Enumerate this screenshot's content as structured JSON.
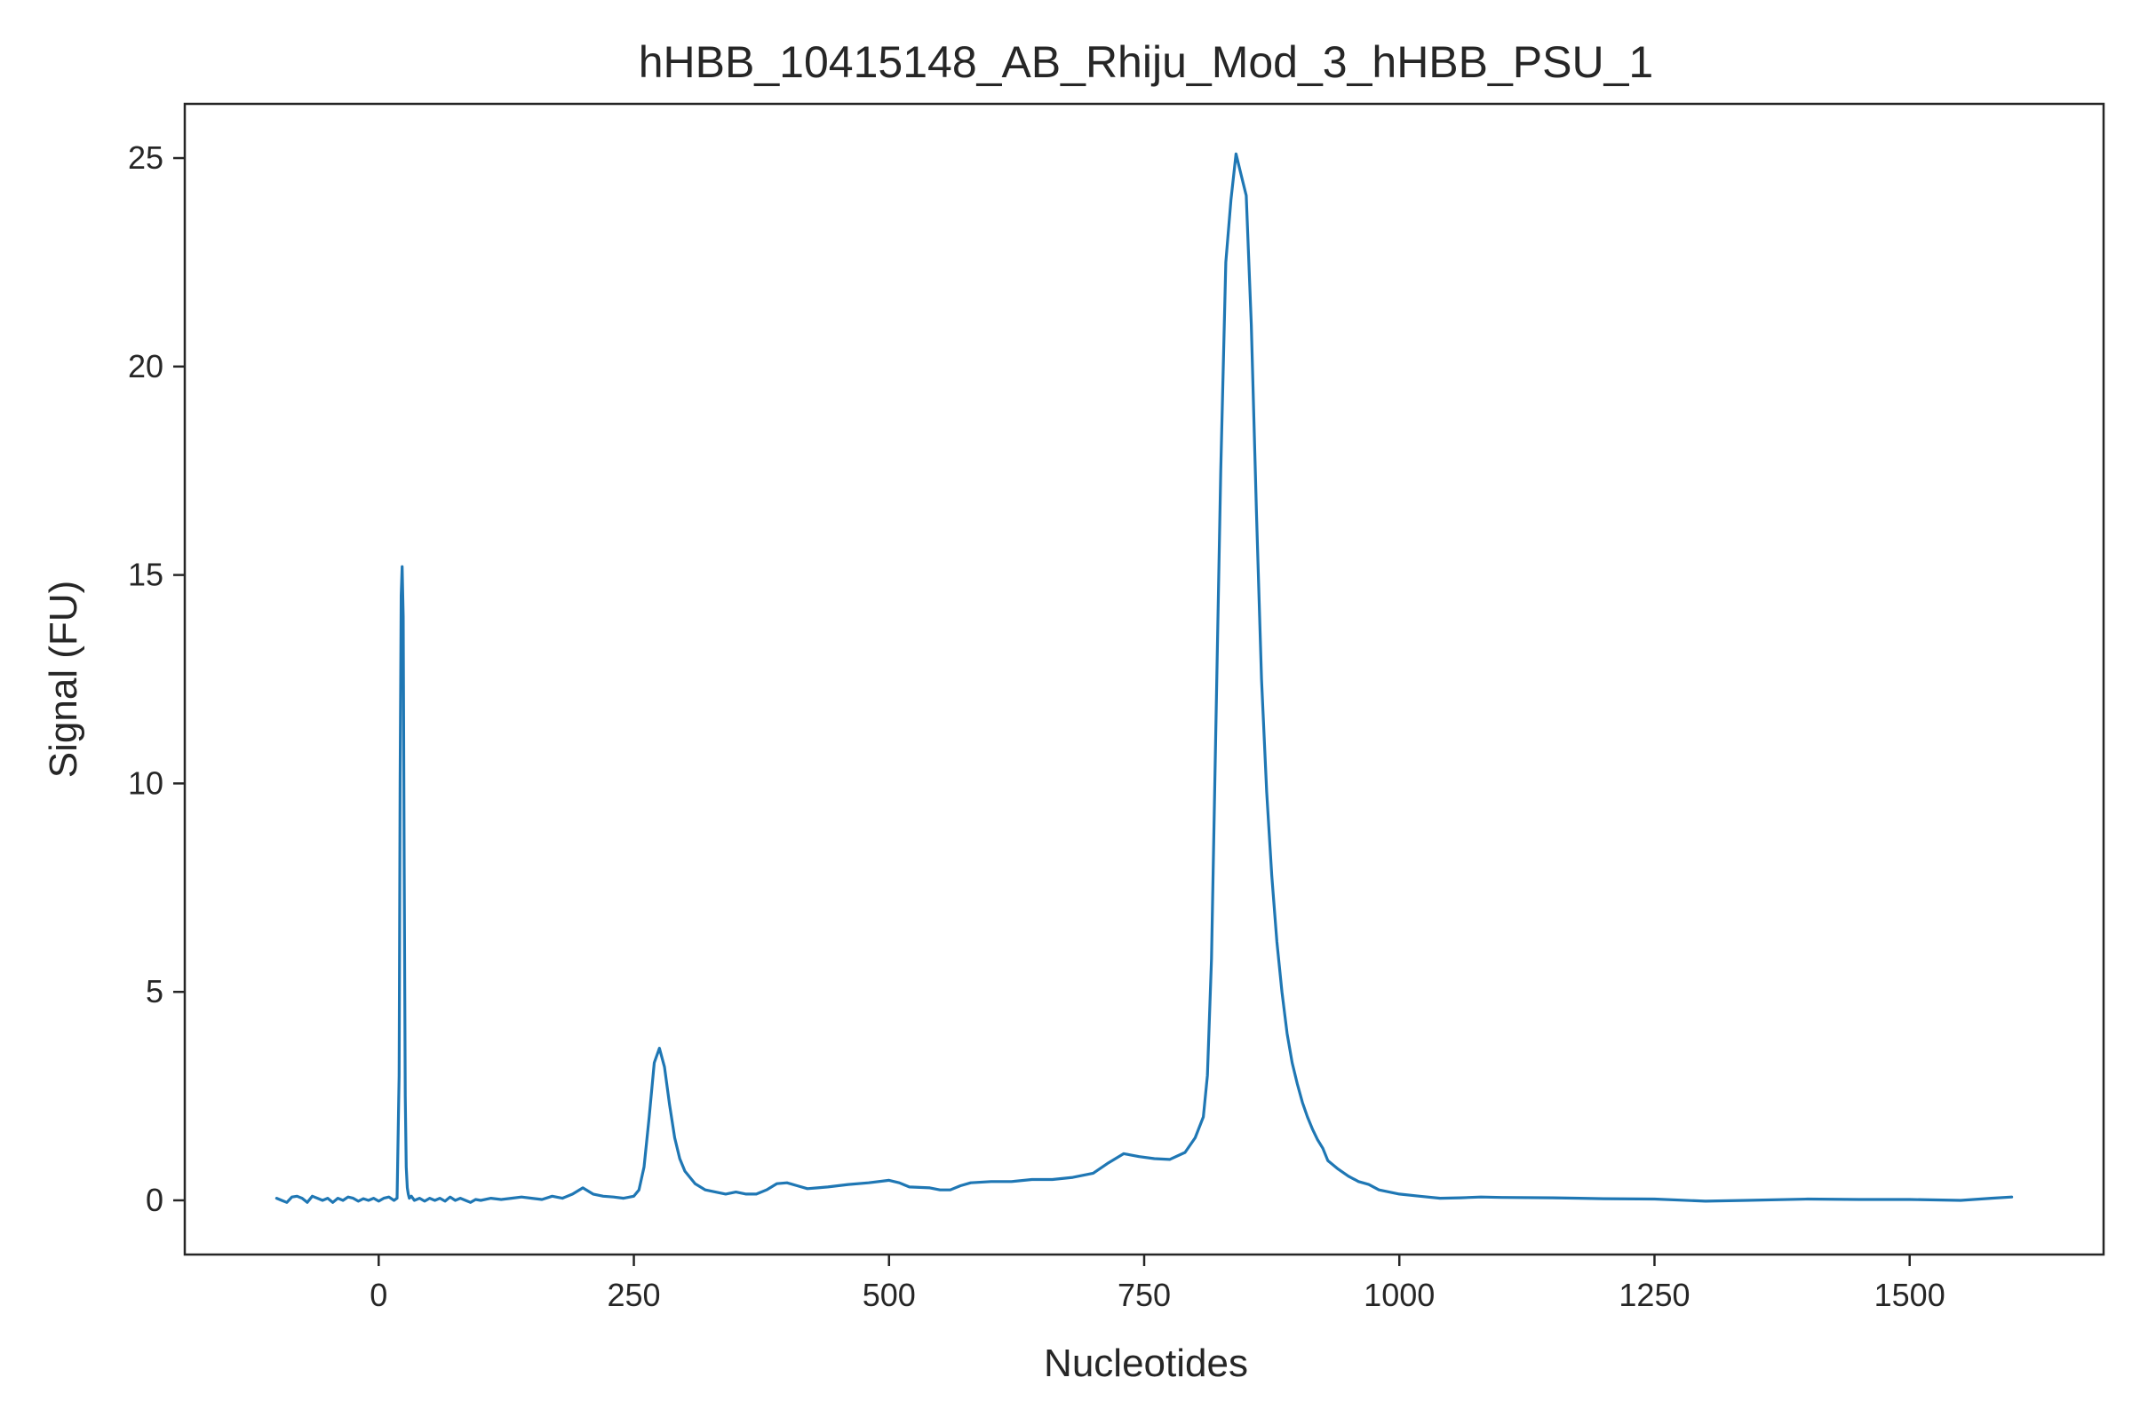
{
  "chart_data": {
    "type": "line",
    "title": "hHBB_10415148_AB_Rhiju_Mod_3_hHBB_PSU_1",
    "xlabel": "Nucleotides",
    "ylabel": "Signal (FU)",
    "xlim": [
      -190,
      1690
    ],
    "ylim": [
      -1.3,
      26.3
    ],
    "x_ticks": [
      0,
      250,
      500,
      750,
      1000,
      1250,
      1500
    ],
    "y_ticks": [
      0,
      5,
      10,
      15,
      20,
      25
    ],
    "grid": false,
    "legend": "none",
    "line_color": "#1f77b4",
    "series": [
      {
        "x": [
          -100,
          -95,
          -90,
          -85,
          -80,
          -75,
          -70,
          -65,
          -60,
          -55,
          -50,
          -45,
          -40,
          -35,
          -30,
          -25,
          -20,
          -15,
          -10,
          -5,
          0,
          5,
          10,
          15,
          18,
          20,
          21,
          22,
          23,
          24,
          25,
          26,
          27,
          28,
          29,
          30,
          32,
          35,
          40,
          45,
          50,
          55,
          60,
          65,
          70,
          75,
          80,
          85,
          90,
          95,
          100,
          110,
          120,
          130,
          140,
          150,
          160,
          170,
          180,
          190,
          200,
          210,
          220,
          230,
          240,
          250,
          255,
          260,
          265,
          270,
          275,
          280,
          285,
          290,
          295,
          300,
          310,
          320,
          330,
          340,
          350,
          360,
          370,
          380,
          390,
          400,
          410,
          420,
          430,
          440,
          460,
          480,
          500,
          510,
          520,
          540,
          550,
          560,
          570,
          580,
          600,
          620,
          640,
          660,
          680,
          700,
          715,
          730,
          745,
          760,
          775,
          790,
          800,
          808,
          812,
          816,
          820,
          825,
          830,
          835,
          840,
          845,
          850,
          855,
          860,
          865,
          870,
          875,
          880,
          885,
          890,
          895,
          900,
          905,
          910,
          915,
          920,
          925,
          930,
          940,
          950,
          960,
          970,
          980,
          1000,
          1020,
          1040,
          1060,
          1080,
          1100,
          1150,
          1200,
          1250,
          1300,
          1340,
          1400,
          1450,
          1500,
          1550,
          1580,
          1600
        ],
        "y": [
          0.05,
          0.0,
          -0.05,
          0.08,
          0.1,
          0.05,
          -0.05,
          0.1,
          0.05,
          0.0,
          0.05,
          -0.05,
          0.05,
          0.0,
          0.08,
          0.05,
          -0.02,
          0.04,
          0.0,
          0.05,
          -0.02,
          0.05,
          0.08,
          0.0,
          0.05,
          3.0,
          10.0,
          14.5,
          15.2,
          14.0,
          8.0,
          2.5,
          0.8,
          0.3,
          0.15,
          0.05,
          0.1,
          0.0,
          0.05,
          -0.02,
          0.05,
          0.0,
          0.05,
          -0.02,
          0.08,
          0.0,
          0.05,
          0.0,
          -0.05,
          0.02,
          0.0,
          0.05,
          0.02,
          0.05,
          0.08,
          0.05,
          0.02,
          0.1,
          0.05,
          0.15,
          0.3,
          0.15,
          0.1,
          0.08,
          0.05,
          0.1,
          0.25,
          0.8,
          2.0,
          3.3,
          3.65,
          3.2,
          2.3,
          1.5,
          1.0,
          0.7,
          0.4,
          0.25,
          0.2,
          0.15,
          0.2,
          0.15,
          0.15,
          0.25,
          0.4,
          0.42,
          0.35,
          0.28,
          0.3,
          0.32,
          0.38,
          0.42,
          0.48,
          0.42,
          0.32,
          0.3,
          0.25,
          0.25,
          0.35,
          0.42,
          0.45,
          0.45,
          0.5,
          0.5,
          0.55,
          0.65,
          0.9,
          1.12,
          1.05,
          1.0,
          0.98,
          1.15,
          1.5,
          2.0,
          3.0,
          5.8,
          11.0,
          17.5,
          22.5,
          24.0,
          25.1,
          24.6,
          24.1,
          21.0,
          16.5,
          12.5,
          9.8,
          7.8,
          6.2,
          5.0,
          4.0,
          3.3,
          2.8,
          2.35,
          2.0,
          1.7,
          1.45,
          1.25,
          0.95,
          0.75,
          0.58,
          0.45,
          0.38,
          0.25,
          0.15,
          0.1,
          0.05,
          0.06,
          0.08,
          0.07,
          0.06,
          0.04,
          0.03,
          -0.02,
          0.0,
          0.03,
          0.02,
          0.02,
          0.0,
          0.05,
          0.08
        ]
      }
    ]
  }
}
